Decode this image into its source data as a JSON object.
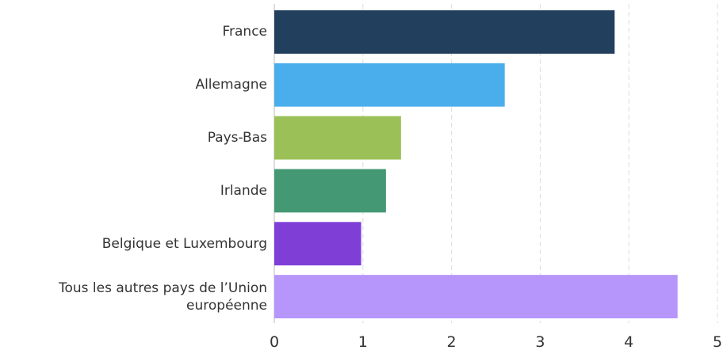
{
  "chart_data": {
    "type": "hbar",
    "categories": [
      "France",
      "Allemagne",
      "Pays-Bas",
      "Irlande",
      "Belgique et Luxembourg",
      "Tous les autres pays de l’Union européenne"
    ],
    "values": [
      3.84,
      2.6,
      1.43,
      1.26,
      0.98,
      4.55
    ],
    "colors": [
      "#233f5e",
      "#4aaeec",
      "#9bc057",
      "#449873",
      "#7f3fd7",
      "#b696fb"
    ],
    "xlim": [
      0,
      5
    ],
    "xticks": [
      0,
      1,
      2,
      3,
      4,
      5
    ],
    "grid": true
  }
}
